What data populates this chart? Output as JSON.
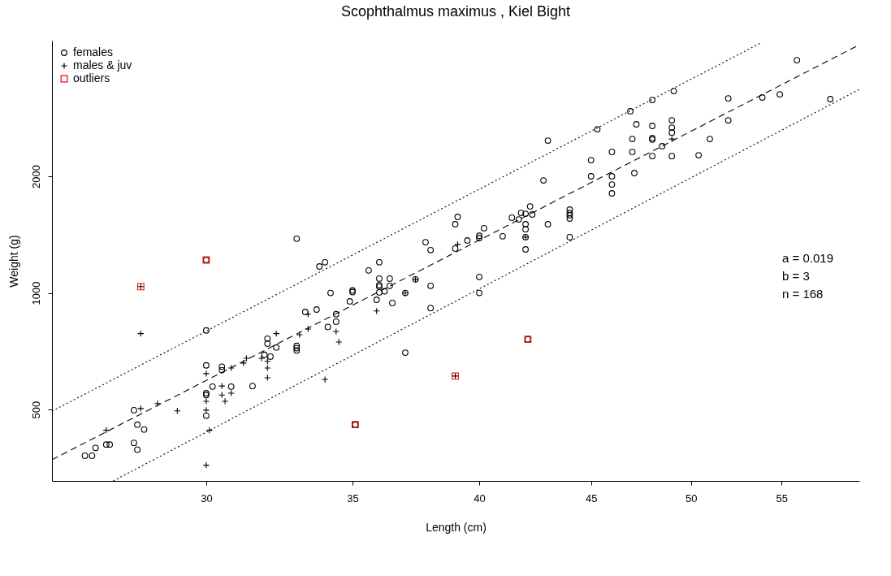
{
  "chart_data": {
    "type": "scatter",
    "title": "Scophthalmus maximus , Kiel Bight",
    "xlabel": "Length (cm)",
    "ylabel": "Weight (g)",
    "log": "xy",
    "grid": false,
    "legend": "top left",
    "xlim": [
      25.5,
      59.7
    ],
    "ylim": [
      327,
      4480
    ],
    "xticks": [
      30,
      35,
      40,
      45,
      50,
      55
    ],
    "yticks": [
      500,
      1000,
      2000
    ],
    "annotations": [
      "a = 0.019",
      "b = 3",
      "n = 168"
    ],
    "series": [
      {
        "name": "females",
        "type": "scatter",
        "marker": "circle",
        "color": "#000000",
        "x": [
          30,
          30,
          32,
          32,
          32.3,
          30,
          30.5,
          30.5,
          31.9,
          32.1,
          31.5,
          30.8,
          30.2,
          30,
          30,
          30,
          27.8,
          27.9,
          28.1,
          27.8,
          27.9,
          27,
          27.1,
          26.7,
          26.4,
          26.6,
          33,
          33.8,
          34,
          34.2,
          35,
          35,
          34.9,
          34.4,
          34.4,
          33.3,
          33.7,
          34.1,
          33,
          33,
          33,
          35.1,
          37,
          36,
          35.6,
          36,
          36,
          36,
          36,
          36.4,
          36.4,
          36.2,
          35.9,
          36.5,
          37,
          37.4,
          38,
          38,
          37.8,
          38,
          39.1,
          39,
          39,
          39.5,
          40,
          40,
          40.2,
          40,
          40,
          43,
          42.8,
          45,
          46,
          45,
          46,
          46,
          46,
          47.1,
          47,
          47,
          48,
          48,
          48,
          48.5,
          49,
          49,
          49,
          41,
          41.4,
          41.7,
          41.8,
          42,
          42.2,
          42.3,
          42,
          42,
          42,
          42,
          43,
          44,
          44,
          44,
          44,
          44,
          45.3,
          46.9,
          47.2,
          48,
          48,
          49.1,
          49,
          50.4,
          51,
          52,
          52,
          53.9,
          54.9,
          55.9,
          57.9,
          42.1
        ],
        "values": [
          1216,
          800,
          762,
          740,
          723,
          650,
          645,
          632,
          692,
          685,
          575,
          573,
          573,
          551,
          545,
          482,
          498,
          457,
          444,
          410,
          394,
          406,
          406,
          398,
          380,
          380,
          1380,
          1170,
          1200,
          1000,
          1015,
          1005,
          951,
          881,
          843,
          893,
          906,
          817,
          730,
          720,
          710,
          457,
          701,
          1200,
          1143,
          1089,
          1048,
          1038,
          1003,
          1089,
          1043,
          1010,
          960,
          942,
          1000,
          1084,
          1043,
          914,
          1352,
          1290,
          1571,
          1504,
          1302,
          1366,
          1386,
          1404,
          1469,
          1100,
          1000,
          2473,
          1952,
          2202,
          2313,
          2000,
          2000,
          1905,
          1807,
          2039,
          2497,
          2313,
          2487,
          2510,
          2255,
          2392,
          2255,
          2594,
          2671,
          1400,
          1564,
          1548,
          1609,
          1601,
          1672,
          1594,
          1504,
          1460,
          1295,
          1393,
          1504,
          1641,
          1609,
          1586,
          1556,
          1393,
          2646,
          2944,
          2724,
          3148,
          2698,
          3320,
          2790,
          2267,
          2497,
          3178,
          2790,
          3195,
          3256,
          3988,
          3164,
          759
        ]
      },
      {
        "name": "males & juv",
        "type": "scatter",
        "marker": "cross",
        "color": "#000000",
        "x": [
          28,
          28,
          32.3,
          30,
          30.8,
          31.2,
          31.3,
          31.8,
          32,
          32,
          32,
          30.8,
          30.6,
          30.5,
          30.5,
          30,
          30,
          30.1,
          30,
          29.1,
          28.5,
          28,
          27,
          33.4,
          33.4,
          33.1,
          34.4,
          34.5,
          34,
          39,
          35.9,
          37,
          37.4,
          39.1,
          42,
          49
        ],
        "values": [
          1038,
          785,
          785,
          619,
          640,
          659,
          678,
          678,
          666,
          640,
          604,
          551,
          525,
          545,
          575,
          525,
          498,
          442,
          359,
          496,
          518,
          503,
          442,
          881,
          807,
          780,
          795,
          747,
          598,
          610,
          898,
          1000,
          1084,
          1334,
          1393,
          2496
        ]
      },
      {
        "name": "outliers",
        "type": "scatter",
        "marker": "square",
        "color": "#ff0000",
        "x": [
          28,
          30,
          35.1,
          39,
          42.1
        ],
        "values": [
          1038,
          1216,
          457,
          610,
          759
        ]
      },
      {
        "type": "line",
        "line_style": "dashed",
        "color": "#000000",
        "x": [
          25.5,
          59.7
        ],
        "values": [
          371,
          4371
        ]
      },
      {
        "type": "line",
        "line_style": "dotted",
        "color": "#000000",
        "x": [
          25.5,
          53.8
        ],
        "values": [
          495,
          4415
        ]
      },
      {
        "type": "line",
        "line_style": "dotted",
        "color": "#000000",
        "x": [
          27.2,
          59.7
        ],
        "values": [
          327,
          3352
        ]
      }
    ]
  }
}
